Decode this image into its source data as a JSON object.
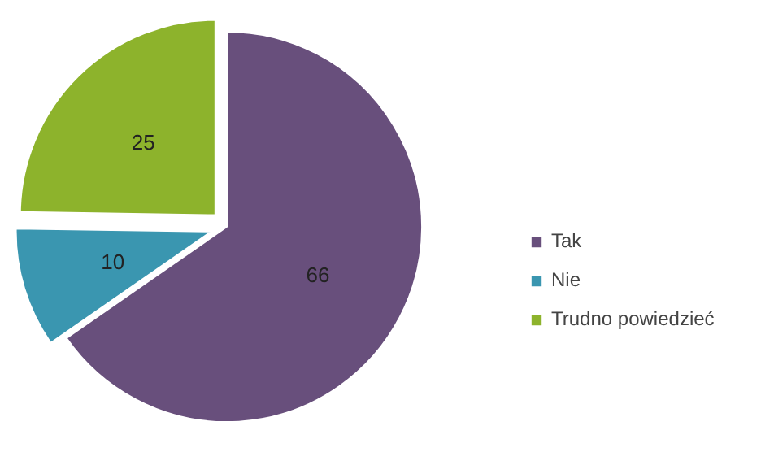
{
  "chart_data": {
    "type": "pie",
    "categories": [
      "Tak",
      "Nie",
      "Trudno powiedzieć"
    ],
    "values": [
      66,
      10,
      25
    ],
    "colors": [
      "#684f7c",
      "#3a96b0",
      "#8db32c"
    ],
    "data_labels": true,
    "legend": "right"
  }
}
